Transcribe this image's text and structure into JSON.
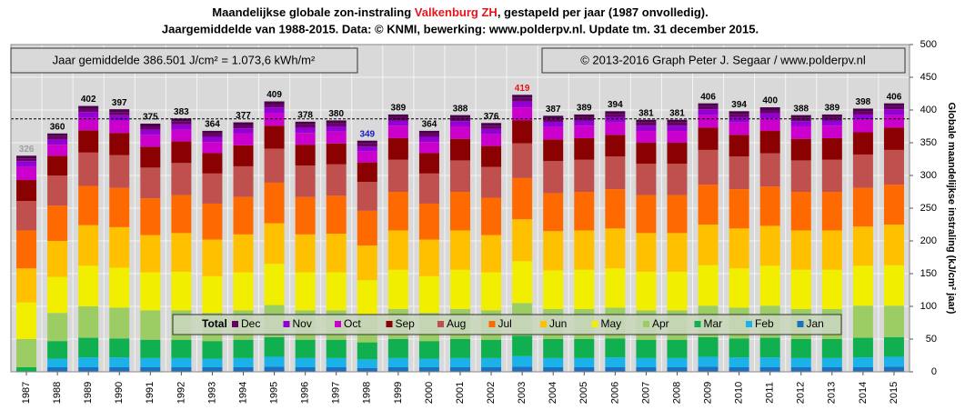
{
  "chart_data": {
    "type": "stacked_bar",
    "title": {
      "pre": "Maandelijkse  globale  zon-instraling ",
      "highlight": "Valkenburg  ZH",
      "post": ", gestapeld per jaar (1987 onvolledig)."
    },
    "subtitle": "Jaargemiddelde  van 1988-2015.  Data: © KNMI,  bewerking:  www.polderpv.nl.  Update tm. 31 december 2015.",
    "y_label": "Globale maandelijkse instraling (kJ/cm² jaar)",
    "average": 386.501,
    "average_text": "Jaar gemiddelde   386.501  J/cm² = 1.073,6 kWh/m²",
    "credit": "© 2013-2016  Graph   Peter J. Segaar / www.polderpv.nl",
    "legend_title": "Total",
    "title_highlight_color": "#e8141c",
    "categories": [
      "1987",
      "1988",
      "1989",
      "1990",
      "1991",
      "1992",
      "1993",
      "1994",
      "1995",
      "1996",
      "1997",
      "1998",
      "1999",
      "2000",
      "2001",
      "2002",
      "2003",
      "2004",
      "2005",
      "2006",
      "2007",
      "2008",
      "2009",
      "2010",
      "2011",
      "2012",
      "2013",
      "2014",
      "2015"
    ],
    "totals": [
      326,
      360,
      402,
      397,
      375,
      383,
      364,
      377,
      409,
      378,
      380,
      349,
      389,
      364,
      388,
      376,
      419,
      387,
      389,
      394,
      381,
      381,
      406,
      394,
      400,
      388,
      389,
      398,
      406
    ],
    "total_colors": [
      "#a0a0a0",
      "#000",
      "#000",
      "#000",
      "#000",
      "#000",
      "#000",
      "#000",
      "#000",
      "#000",
      "#000",
      "#1a1acc",
      "#000",
      "#000",
      "#000",
      "#000",
      "#e8141c",
      "#000",
      "#000",
      "#000",
      "#000",
      "#000",
      "#000",
      "#000",
      "#000",
      "#000",
      "#000",
      "#000",
      "#000"
    ],
    "series": [
      {
        "name": "Jan",
        "color": "#1e6fbe",
        "values": [
          null,
          7,
          7,
          7,
          7,
          7,
          7,
          7,
          8,
          7,
          7,
          6,
          7,
          7,
          7,
          7,
          8,
          7,
          7,
          7,
          7,
          7,
          8,
          7,
          7,
          7,
          7,
          7,
          8
        ]
      },
      {
        "name": "Feb",
        "color": "#1ab2e8",
        "values": [
          null,
          13,
          15,
          15,
          14,
          14,
          13,
          14,
          15,
          14,
          14,
          13,
          14,
          13,
          14,
          14,
          16,
          14,
          14,
          15,
          14,
          14,
          15,
          15,
          15,
          14,
          14,
          15,
          15
        ]
      },
      {
        "name": "Mar",
        "color": "#10b050",
        "values": [
          7,
          27,
          30,
          29,
          28,
          28,
          27,
          28,
          30,
          28,
          28,
          26,
          29,
          27,
          29,
          28,
          31,
          29,
          29,
          29,
          28,
          28,
          30,
          29,
          30,
          29,
          29,
          30,
          30
        ]
      },
      {
        "name": "Apr",
        "color": "#9ccc64",
        "values": [
          43,
          43,
          48,
          47,
          45,
          45,
          43,
          45,
          49,
          45,
          45,
          42,
          46,
          43,
          46,
          45,
          50,
          46,
          46,
          47,
          45,
          45,
          48,
          47,
          49,
          46,
          46,
          49,
          48
        ]
      },
      {
        "name": "May",
        "color": "#f2ee00",
        "values": [
          56,
          55,
          62,
          61,
          58,
          59,
          56,
          58,
          63,
          58,
          58,
          53,
          60,
          56,
          60,
          58,
          64,
          59,
          60,
          60,
          59,
          59,
          62,
          60,
          61,
          60,
          60,
          61,
          62
        ]
      },
      {
        "name": "Jun",
        "color": "#ffc000",
        "values": [
          52,
          55,
          62,
          62,
          57,
          59,
          56,
          58,
          62,
          58,
          59,
          53,
          60,
          56,
          60,
          57,
          64,
          60,
          60,
          61,
          59,
          59,
          62,
          61,
          61,
          60,
          60,
          60,
          62
        ]
      },
      {
        "name": "Jul",
        "color": "#ff6a00",
        "values": [
          58,
          54,
          60,
          60,
          56,
          58,
          55,
          57,
          62,
          57,
          58,
          53,
          59,
          55,
          59,
          57,
          63,
          58,
          59,
          60,
          58,
          58,
          61,
          60,
          60,
          59,
          59,
          59,
          61
        ]
      },
      {
        "name": "Aug",
        "color": "#c0504d",
        "values": [
          45,
          46,
          51,
          50,
          47,
          49,
          46,
          47,
          52,
          48,
          48,
          44,
          49,
          46,
          48,
          47,
          53,
          49,
          49,
          50,
          48,
          48,
          53,
          50,
          51,
          48,
          49,
          51,
          53
        ]
      },
      {
        "name": "Sep",
        "color": "#8b0000",
        "values": [
          32,
          30,
          34,
          34,
          32,
          33,
          31,
          32,
          35,
          32,
          32,
          30,
          33,
          31,
          33,
          32,
          35,
          33,
          33,
          33,
          32,
          32,
          34,
          33,
          34,
          33,
          33,
          34,
          34
        ]
      },
      {
        "name": "Oct",
        "color": "#cc00cc",
        "values": [
          20,
          17,
          19,
          19,
          18,
          18,
          17,
          18,
          19,
          18,
          18,
          17,
          19,
          17,
          19,
          18,
          20,
          19,
          19,
          19,
          18,
          18,
          19,
          19,
          19,
          19,
          19,
          19,
          19
        ]
      },
      {
        "name": "Nov",
        "color": "#9400d3",
        "values": [
          9,
          8,
          9,
          8,
          8,
          8,
          8,
          8,
          9,
          8,
          8,
          7,
          8,
          8,
          8,
          8,
          9,
          8,
          8,
          8,
          8,
          8,
          9,
          8,
          8,
          8,
          8,
          8,
          9
        ]
      },
      {
        "name": "Dec",
        "color": "#660066",
        "values": [
          4,
          5,
          5,
          5,
          5,
          5,
          5,
          5,
          5,
          5,
          5,
          5,
          5,
          5,
          5,
          5,
          6,
          5,
          5,
          5,
          5,
          5,
          5,
          5,
          5,
          5,
          5,
          5,
          5
        ]
      }
    ],
    "ylim": [
      0,
      500
    ],
    "yticks": [
      0,
      50,
      100,
      150,
      200,
      250,
      300,
      350,
      400,
      450,
      500
    ],
    "grid": true
  }
}
